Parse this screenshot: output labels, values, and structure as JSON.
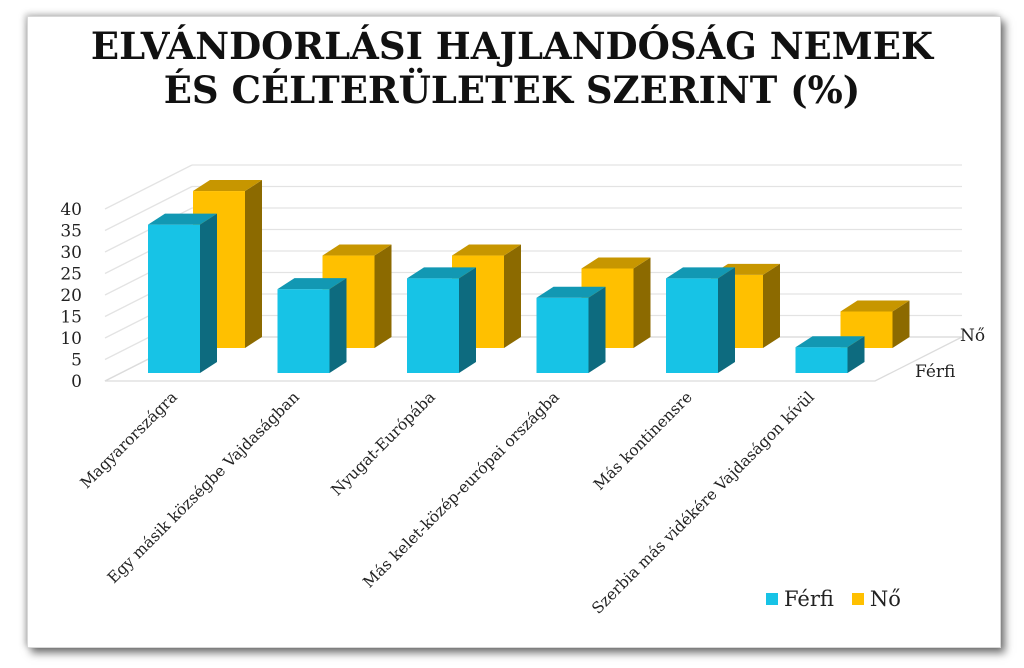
{
  "chart_data": {
    "type": "bar",
    "variant": "3d-clustered-depth",
    "title": "ELVÁNDORLÁSI HAJLANDÓSÁG NEMEK ÉS CÉLTERÜLETEK SZERINT (%)",
    "title_lines": [
      "ELVÁNDORLÁSI HAJLANDÓSÁG NEMEK",
      "ÉS CÉLTERÜLETEK SZERINT (%)"
    ],
    "categories": [
      "Magyarországra",
      "Egy másik községbe Vajdaságban",
      "Nyugat-Európába",
      "Más kelet-közép-európai országba",
      "Más kontinensre",
      "Szerbia más vidékére Vajdaságon kívül"
    ],
    "series": [
      {
        "name": "Férfi",
        "color": "#17C3E6",
        "values": [
          34.5,
          19.5,
          22,
          17.5,
          22,
          6
        ]
      },
      {
        "name": "Nő",
        "color": "#FFC000",
        "values": [
          36.5,
          21.5,
          21.5,
          18.5,
          17,
          8.5
        ]
      }
    ],
    "depth_axis_labels": [
      "Nő",
      "Férfi"
    ],
    "xlabel": "",
    "ylabel": "",
    "ylim": [
      0,
      40
    ],
    "yticks": [
      "0",
      "5",
      "10",
      "15",
      "20",
      "25",
      "30",
      "35",
      "40"
    ],
    "grid": true,
    "legend_position": "bottom-right"
  },
  "legend": {
    "items": [
      {
        "label": "Férfi",
        "color": "#17C3E6"
      },
      {
        "label": "Nő",
        "color": "#FFC000"
      }
    ]
  }
}
